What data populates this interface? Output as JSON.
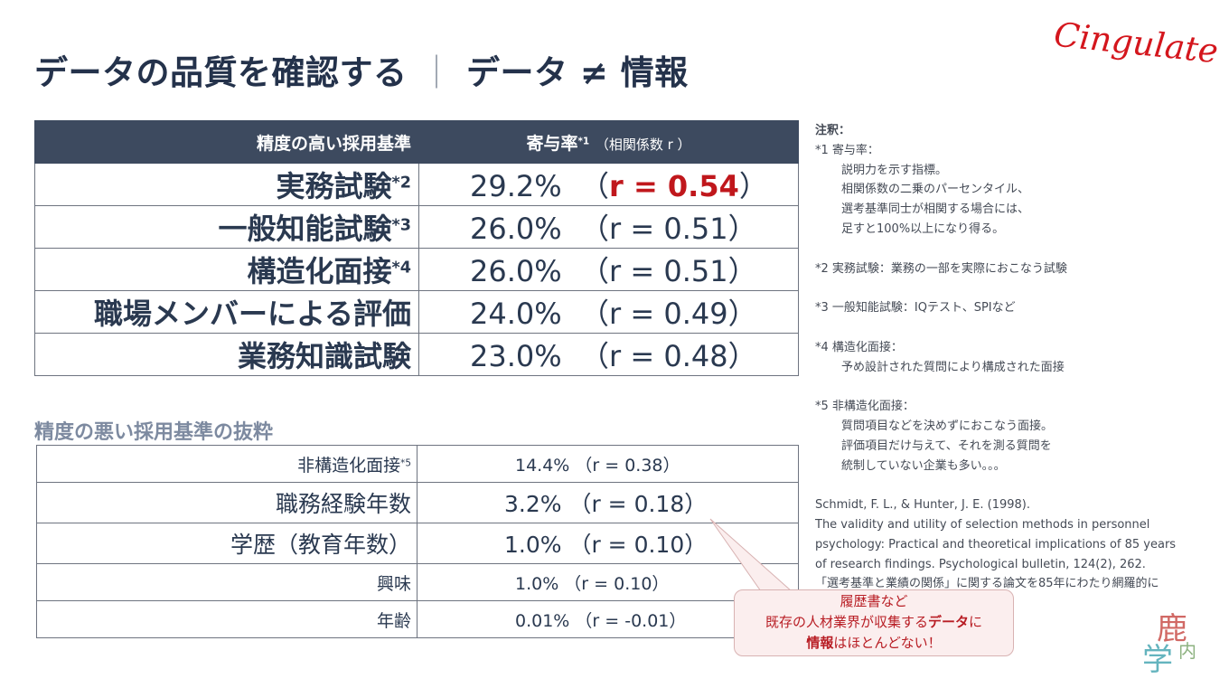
{
  "title": {
    "main": "データの品質を確認する",
    "separator": "｜",
    "sub": "データ ≠ 情報"
  },
  "logo": "Cingulate",
  "good_table": {
    "header_criterion": "精度の高い採用基準",
    "header_value": "寄与率",
    "header_value_sup": "*1",
    "header_value_note": "（相関係数 r ）",
    "rows": [
      {
        "label": "実務試験",
        "sup": "*2",
        "pct": "29.2%",
        "r_open": "（",
        "r": "r = 0.54",
        "r_close": "）"
      },
      {
        "label": "一般知能試験",
        "sup": "*3",
        "pct": "26.0%",
        "r_open": "（",
        "r": "r = 0.51",
        "r_close": "）"
      },
      {
        "label": "構造化面接",
        "sup": "*4",
        "pct": "26.0%",
        "r_open": "（",
        "r": "r = 0.51",
        "r_close": "）"
      },
      {
        "label": "職場メンバーによる評価",
        "sup": "",
        "pct": "24.0%",
        "r_open": "（",
        "r": "r = 0.49",
        "r_close": "）"
      },
      {
        "label": "業務知識試験",
        "sup": "",
        "pct": "23.0%",
        "r_open": "（",
        "r": "r = 0.48",
        "r_close": "）"
      }
    ],
    "highlight_color": "#c0171c"
  },
  "bad_title": "精度の悪い採用基準の抜粋",
  "bad_table": {
    "rows": [
      {
        "label": "非構造化面接",
        "sup": "*5",
        "value": "14.4% （r = 0.38）"
      },
      {
        "label": "職務経験年数",
        "sup": "",
        "value": "3.2% （r = 0.18）"
      },
      {
        "label": "学歴（教育年数）",
        "sup": "",
        "value": "1.0% （r = 0.10）"
      },
      {
        "label": "興味",
        "sup": "",
        "value": "1.0% （r = 0.10）"
      },
      {
        "label": "年齢",
        "sup": "",
        "value": "0.01% （r = -0.01）"
      }
    ]
  },
  "notes": {
    "heading": "注釈：",
    "n1_title": "*1 寄与率：",
    "n1_lines": [
      "説明力を示す指標。",
      "相関係数の二乗のパーセンタイル、",
      "選考基準同士が相関する場合には、",
      "足すと100%以上になり得る。"
    ],
    "n2": "*2 実務試験：業務の一部を実際におこなう試験",
    "n3": "*3 一般知能試験：IQテスト、SPIなど",
    "n4_title": "*4 構造化面接：",
    "n4_lines": [
      "予め設計された質問により構成された面接"
    ],
    "n5_title": "*5 非構造化面接：",
    "n5_lines": [
      "質問項目などを決めずにおこなう面接。",
      "評価項目だけ与えて、それを測る質問を",
      "統制していない企業も多い。。。"
    ],
    "ref_lines": [
      "Schmidt, F. L., & Hunter, J. E. (1998).",
      "The validity and utility of selection methods in personnel",
      "psychology: Practical and theoretical implications of 85 years",
      "of research findings. Psychological bulletin, 124(2), 262.",
      "「選考基準と業績の関係」に関する論文を85年にわたり網羅的に"
    ]
  },
  "callout": {
    "line1": "履歴書など",
    "line2_a": "既存の人材業界が収集する",
    "line2_b": "データ",
    "line2_c": "に",
    "line3_a": "情報",
    "line3_b": "はほとんどない！"
  },
  "stamp": {
    "k1": "鹿",
    "k2": "学",
    "k3": "内"
  }
}
